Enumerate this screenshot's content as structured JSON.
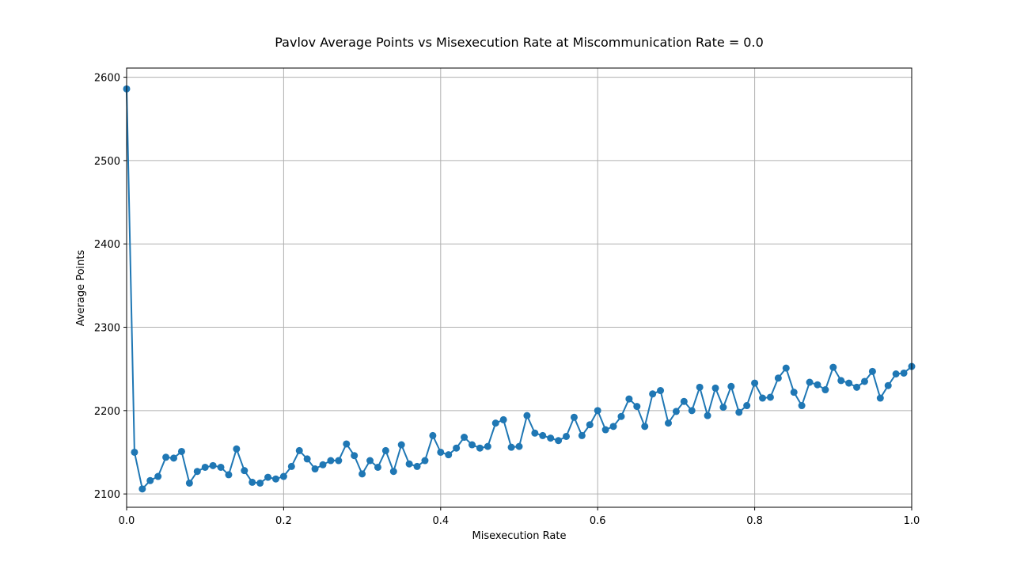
{
  "chart_data": {
    "type": "line",
    "title": "Pavlov Average Points vs Misexecution Rate at Miscommunication Rate = 0.0",
    "xlabel": "Misexecution Rate",
    "ylabel": "Average Points",
    "xlim": [
      0.0,
      1.0
    ],
    "ylim": [
      2084,
      2611
    ],
    "xticks": [
      "0.0",
      "0.2",
      "0.4",
      "0.6",
      "0.8",
      "1.0"
    ],
    "yticks": [
      "2100",
      "2200",
      "2300",
      "2400",
      "2500",
      "2600"
    ],
    "grid": true,
    "marker": "circle",
    "colors": {
      "series": "#1f77b4",
      "grid": "#b0b0b0",
      "axis": "#000000"
    },
    "series": [
      {
        "x": [
          0.0,
          0.01,
          0.02,
          0.03,
          0.04,
          0.05,
          0.06,
          0.07,
          0.08,
          0.09,
          0.1,
          0.11,
          0.12,
          0.13,
          0.14,
          0.15,
          0.16,
          0.17,
          0.18,
          0.19,
          0.2,
          0.21,
          0.22,
          0.23,
          0.24,
          0.25,
          0.26,
          0.27,
          0.28,
          0.29,
          0.3,
          0.31,
          0.32,
          0.33,
          0.34,
          0.35,
          0.36,
          0.37,
          0.38,
          0.39,
          0.4,
          0.41,
          0.42,
          0.43,
          0.44,
          0.45,
          0.46,
          0.47,
          0.48,
          0.49,
          0.5,
          0.51,
          0.52,
          0.53,
          0.54,
          0.55,
          0.56,
          0.57,
          0.58,
          0.59,
          0.6,
          0.61,
          0.62,
          0.63,
          0.64,
          0.65,
          0.66,
          0.67,
          0.68,
          0.69,
          0.7,
          0.71,
          0.72,
          0.73,
          0.74,
          0.75,
          0.76,
          0.77,
          0.78,
          0.79,
          0.8,
          0.81,
          0.82,
          0.83,
          0.84,
          0.85,
          0.86,
          0.87,
          0.88,
          0.89,
          0.9,
          0.91,
          0.92,
          0.93,
          0.94,
          0.95,
          0.96,
          0.97,
          0.98,
          0.99,
          1.0
        ],
        "y": [
          2586,
          2150,
          2106,
          2116,
          2121,
          2144,
          2143,
          2151,
          2113,
          2127,
          2132,
          2134,
          2132,
          2123,
          2154,
          2128,
          2114,
          2113,
          2120,
          2118,
          2121,
          2133,
          2152,
          2142,
          2130,
          2135,
          2140,
          2140,
          2160,
          2146,
          2124,
          2140,
          2132,
          2152,
          2127,
          2159,
          2136,
          2133,
          2140,
          2170,
          2150,
          2147,
          2155,
          2168,
          2159,
          2155,
          2157,
          2185,
          2189,
          2156,
          2157,
          2194,
          2173,
          2170,
          2167,
          2164,
          2169,
          2192,
          2170,
          2183,
          2200,
          2177,
          2181,
          2193,
          2214,
          2205,
          2181,
          2220,
          2224,
          2185,
          2199,
          2211,
          2200,
          2228,
          2194,
          2227,
          2204,
          2229,
          2198,
          2206,
          2233,
          2215,
          2216,
          2239,
          2251,
          2222,
          2206,
          2234,
          2231,
          2225,
          2252,
          2236,
          2233,
          2228,
          2235,
          2247,
          2215,
          2230,
          2244,
          2245,
          2253
        ]
      }
    ]
  }
}
